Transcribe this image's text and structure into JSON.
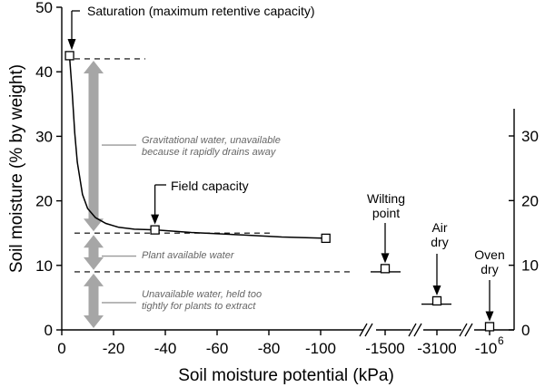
{
  "chart_data": {
    "type": "line",
    "title": "",
    "xlabel": "Soil moisture potential (kPa)",
    "ylabel": "Soil moisture (% by weight)",
    "ylim": [
      0,
      50
    ],
    "right_ylim": [
      0,
      35
    ],
    "x_tick_labels": [
      "0",
      "-20",
      "-40",
      "-60",
      "-80",
      "-100",
      "-1500",
      "-3100",
      "-10"
    ],
    "x_tick_superscript": "6",
    "y_ticks": [
      0,
      10,
      20,
      30,
      40,
      50
    ],
    "right_y_ticks": [
      0,
      10,
      20,
      30
    ],
    "curve": {
      "x": [
        -3,
        -4,
        -5,
        -6,
        -8,
        -10,
        -13,
        -17,
        -22,
        -28,
        -36,
        -50,
        -70,
        -85,
        -102
      ],
      "y": [
        42.5,
        37,
        30.5,
        26,
        21,
        18.8,
        17.4,
        16.5,
        15.9,
        15.6,
        15.5,
        15.1,
        14.7,
        14.4,
        14.2
      ]
    },
    "points": [
      {
        "x": -3,
        "y": 42.5
      },
      {
        "x": -36,
        "y": 15.5
      },
      {
        "x": -102,
        "y": 14.2
      },
      {
        "x": -1500,
        "y": 9.5
      },
      {
        "x": -3100,
        "y": 4.5
      },
      {
        "x": "-10^6",
        "y": 0.5
      }
    ],
    "levels": {
      "saturation": 42,
      "field_capacity": 15,
      "wilting_point": 9
    },
    "annotations": {
      "saturation": "Saturation (maximum retentive capacity)",
      "field_capacity": "Field capacity",
      "wilting_point": [
        "Wilting",
        "point"
      ],
      "air_dry": [
        "Air",
        "dry"
      ],
      "oven_dry": [
        "Oven",
        "dry"
      ],
      "gravitational": [
        "Gravitational water, unavailable",
        "because it rapidly drains away"
      ],
      "plant_available": [
        "Plant available water"
      ],
      "unavailable": [
        "Unavailable water, held too",
        "tightly for plants to extract"
      ]
    }
  }
}
